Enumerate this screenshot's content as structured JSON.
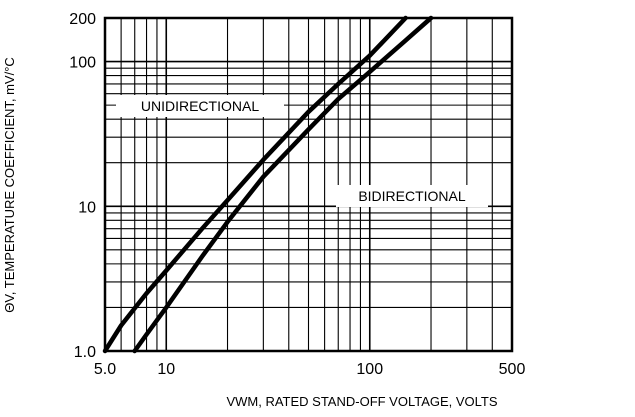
{
  "chart_data": {
    "type": "line",
    "xscale": "log",
    "yscale": "log",
    "xlim": [
      5,
      500
    ],
    "ylim": [
      1,
      200
    ],
    "x_ticks": [
      {
        "value": 5,
        "label": "5.0"
      },
      {
        "value": 10,
        "label": "10"
      },
      {
        "value": 100,
        "label": "100"
      },
      {
        "value": 500,
        "label": "500"
      }
    ],
    "y_ticks": [
      {
        "value": 1,
        "label": "1.0"
      },
      {
        "value": 10,
        "label": "10"
      },
      {
        "value": 100,
        "label": "100"
      },
      {
        "value": 200,
        "label": "200"
      }
    ],
    "xlabel": "VWM, RATED STAND-OFF VOLTAGE, VOLTS",
    "ylabel": "ΘV, TEMPERATURE COEFFICIENT, mV/°C",
    "grid": true,
    "series": [
      {
        "name": "UNIDIRECTIONAL",
        "x": [
          5.0,
          6.0,
          8.0,
          10.0,
          15.0,
          20.0,
          30.0,
          50.0,
          70.0,
          100.0,
          150.0
        ],
        "y": [
          1.0,
          1.5,
          2.5,
          3.6,
          7.0,
          11.0,
          21.0,
          45.0,
          70.0,
          110.0,
          200.0
        ]
      },
      {
        "name": "BIDIRECTIONAL",
        "x": [
          7.0,
          8.0,
          10.0,
          15.0,
          20.0,
          30.0,
          50.0,
          70.0,
          100.0,
          150.0,
          200.0
        ],
        "y": [
          1.0,
          1.3,
          2.0,
          4.5,
          7.8,
          16.0,
          34.0,
          55.0,
          85.0,
          140.0,
          200.0
        ]
      }
    ]
  }
}
